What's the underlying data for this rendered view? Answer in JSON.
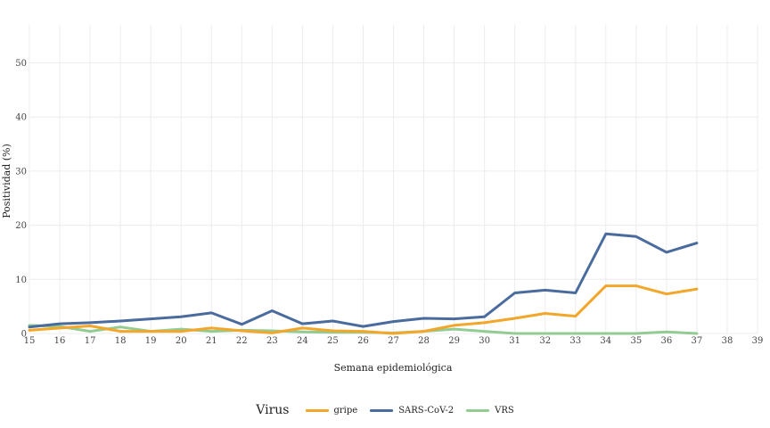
{
  "chart_data": {
    "type": "line",
    "xlabel": "Semana epidemiológica",
    "ylabel": "Positividad (%)",
    "xlim": [
      15,
      39
    ],
    "ylim": [
      0,
      57
    ],
    "x_ticks": [
      15,
      16,
      17,
      18,
      19,
      20,
      21,
      22,
      23,
      24,
      25,
      26,
      27,
      28,
      29,
      30,
      31,
      32,
      33,
      34,
      35,
      36,
      37,
      38,
      39
    ],
    "y_ticks": [
      0,
      10,
      20,
      30,
      40,
      50
    ],
    "grid": true,
    "legend_position": "bottom",
    "legend_title": "Virus",
    "x": [
      15,
      16,
      17,
      18,
      19,
      20,
      21,
      22,
      23,
      24,
      25,
      26,
      27,
      28,
      29,
      30,
      31,
      32,
      33,
      34,
      35,
      36,
      37
    ],
    "series": [
      {
        "name": "gripe",
        "color": "#F2A62A",
        "values": [
          0.6,
          1.0,
          1.4,
          0.4,
          0.4,
          0.4,
          1.0,
          0.5,
          0.1,
          1.0,
          0.5,
          0.4,
          0.0,
          0.4,
          1.5,
          2.0,
          2.8,
          3.7,
          3.2,
          8.8,
          8.8,
          7.3,
          8.2
        ]
      },
      {
        "name": "SARS-CoV-2",
        "color": "#4A6B9D",
        "values": [
          1.2,
          1.8,
          2.0,
          2.3,
          2.7,
          3.1,
          3.8,
          1.7,
          4.2,
          1.8,
          2.3,
          1.3,
          2.2,
          2.8,
          2.7,
          3.1,
          7.5,
          8.0,
          7.5,
          18.4,
          17.9,
          15.0,
          16.7
        ]
      },
      {
        "name": "VRS",
        "color": "#93CC93",
        "values": [
          1.5,
          1.3,
          0.4,
          1.2,
          0.4,
          0.8,
          0.4,
          0.6,
          0.5,
          0.3,
          0.2,
          0.2,
          0.1,
          0.4,
          0.8,
          0.4,
          0.0,
          0.0,
          0.0,
          0.0,
          0.0,
          0.3,
          0.0
        ]
      }
    ]
  }
}
